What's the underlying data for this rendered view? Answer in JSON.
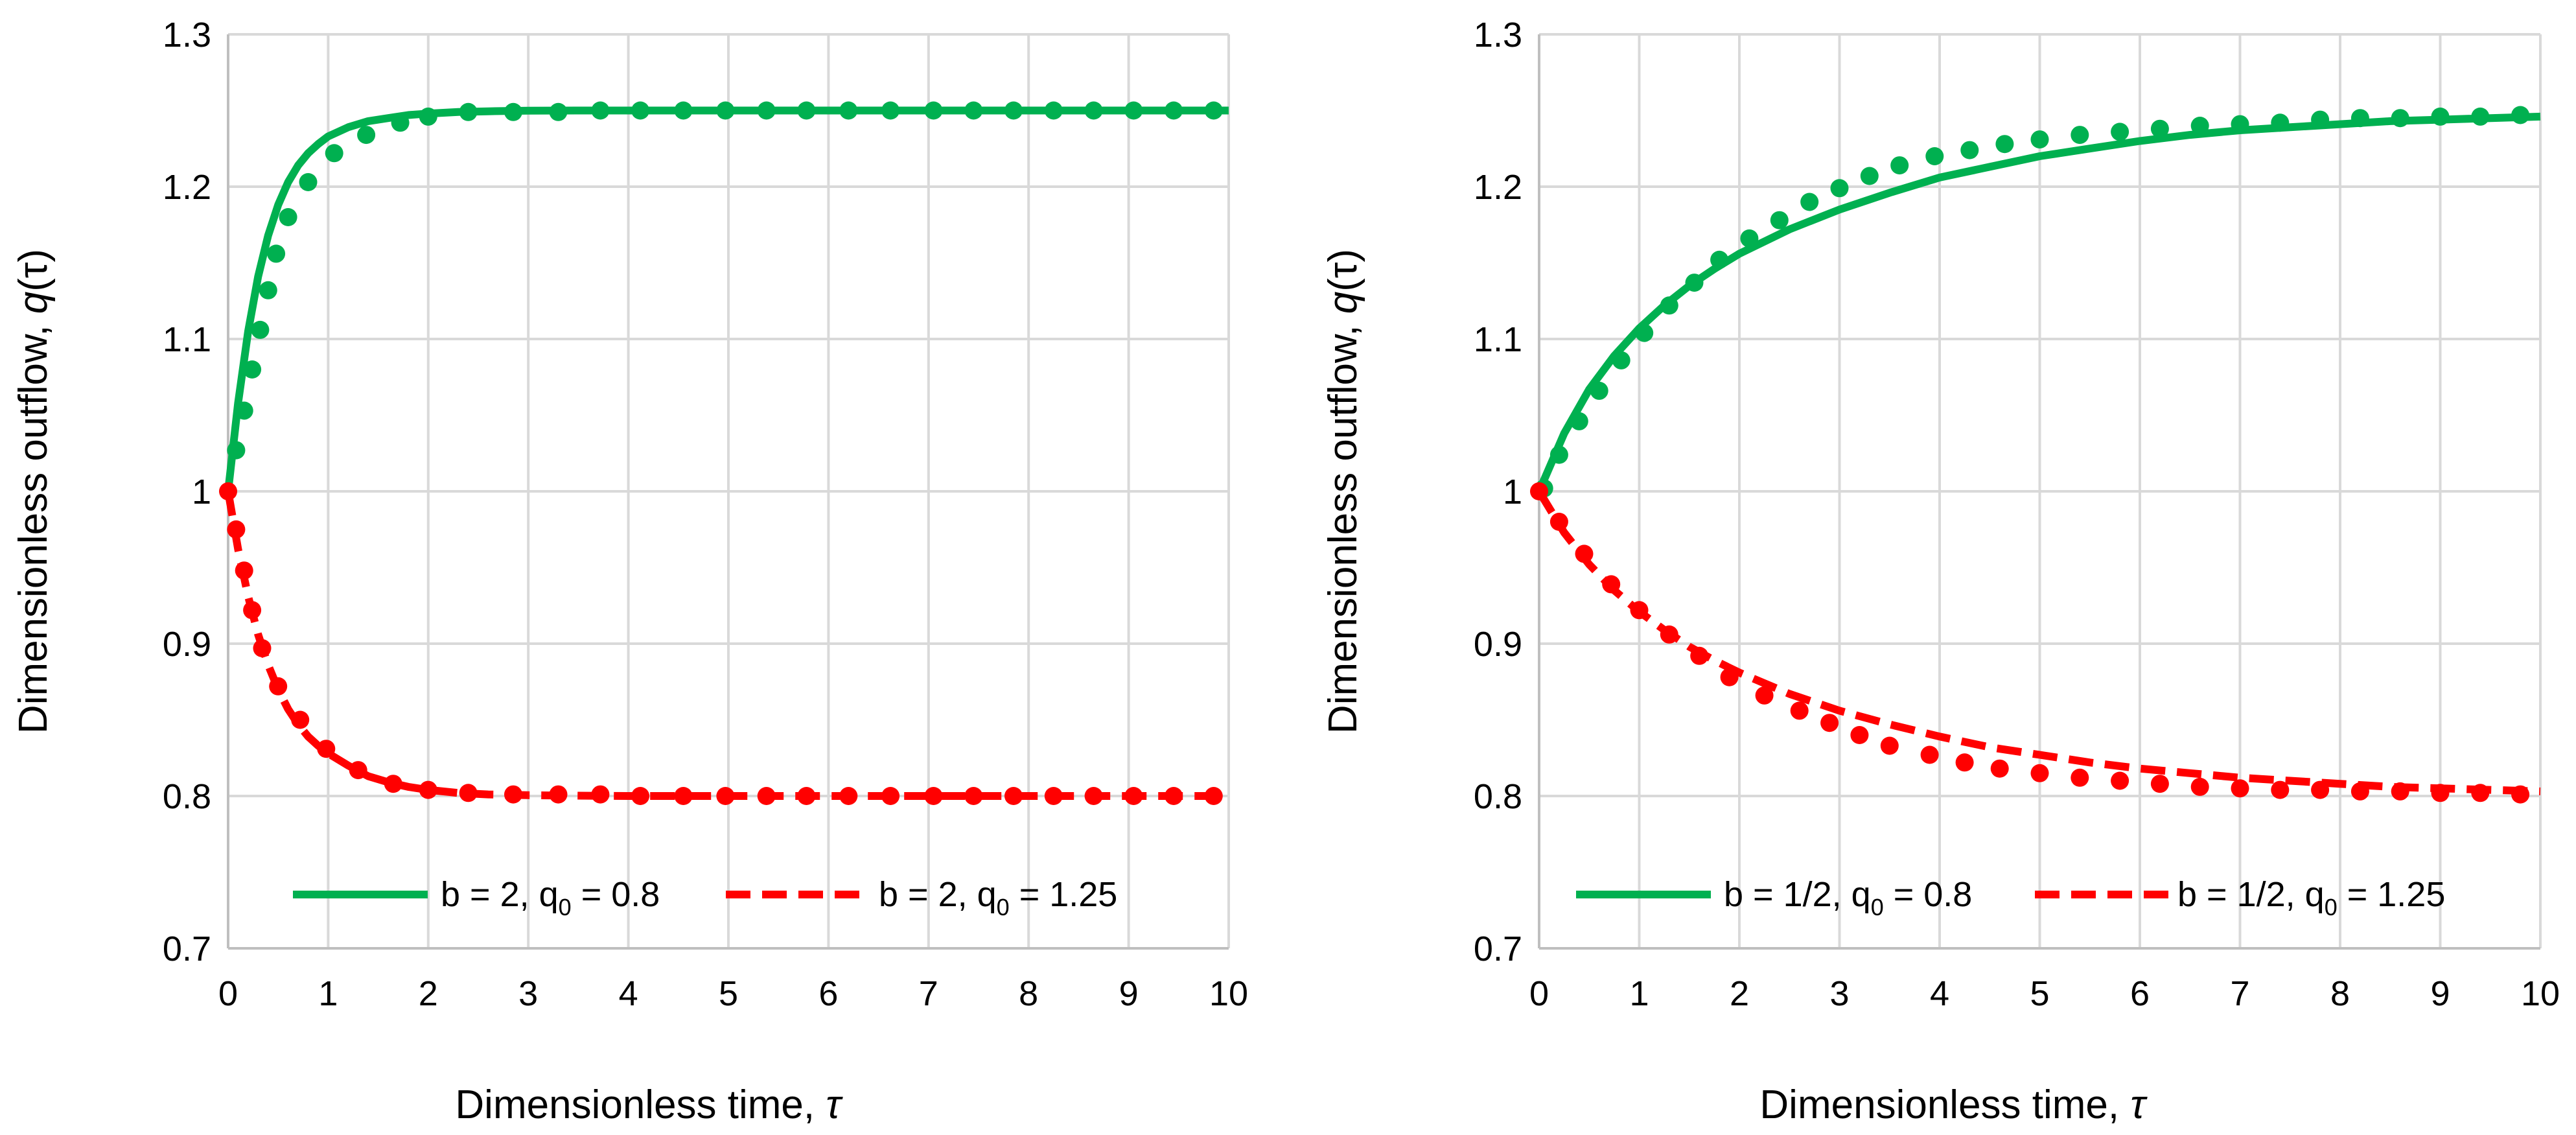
{
  "chart_data": [
    {
      "type": "line",
      "xlabel_text": "Dimensionless time, ",
      "xlabel_symbol": "τ",
      "ylabel_text": "Dimensionless outflow, ",
      "ylabel_symbol": "q",
      "ylabel_suffix": "(τ)",
      "xlim": [
        0,
        10
      ],
      "ylim": [
        0.7,
        1.3
      ],
      "xticks": [
        "0",
        "1",
        "2",
        "3",
        "4",
        "5",
        "6",
        "7",
        "8",
        "9",
        "10"
      ],
      "yticks": [
        "0.7",
        "0.8",
        "0.9",
        "1",
        "1.1",
        "1.2",
        "1.3"
      ],
      "grid": true,
      "legend_position": "bottom",
      "series": [
        {
          "name": "b = 2, q0 = 0.8",
          "legend_main": "b = 2, q",
          "legend_sub": "0",
          "legend_rest": " = 0.8",
          "color": "#00b050",
          "style": "solid",
          "x": [
            0,
            0.1,
            0.2,
            0.3,
            0.4,
            0.5,
            0.6,
            0.7,
            0.8,
            0.9,
            1.0,
            1.2,
            1.4,
            1.6,
            1.8,
            2.0,
            2.3,
            2.6,
            3.0,
            3.5,
            4.0,
            5.0,
            6.0,
            7.0,
            8.0,
            9.0,
            10.0
          ],
          "y": [
            1.0,
            1.058,
            1.105,
            1.141,
            1.168,
            1.188,
            1.203,
            1.214,
            1.222,
            1.228,
            1.233,
            1.239,
            1.243,
            1.245,
            1.247,
            1.248,
            1.249,
            1.2495,
            1.2499,
            1.25,
            1.25,
            1.25,
            1.25,
            1.25,
            1.25,
            1.25,
            1.25
          ],
          "markers_x": [
            0.08,
            0.16,
            0.24,
            0.32,
            0.4,
            0.48,
            0.6,
            0.8,
            1.06,
            1.38,
            1.72,
            2.0,
            2.4,
            2.85,
            3.3,
            3.72,
            4.12,
            4.55,
            4.97,
            5.38,
            5.78,
            6.2,
            6.62,
            7.05,
            7.45,
            7.85,
            8.25,
            8.65,
            9.05,
            9.45,
            9.85
          ],
          "markers_y": [
            1.027,
            1.053,
            1.08,
            1.106,
            1.132,
            1.156,
            1.18,
            1.203,
            1.222,
            1.234,
            1.242,
            1.246,
            1.249,
            1.249,
            1.249,
            1.25,
            1.25,
            1.25,
            1.25,
            1.25,
            1.25,
            1.25,
            1.25,
            1.25,
            1.25,
            1.25,
            1.25,
            1.25,
            1.25,
            1.25,
            1.25
          ]
        },
        {
          "name": "b = 2, q0 = 1.25",
          "legend_main": "b = 2, q",
          "legend_sub": "0",
          "legend_rest": " = 1.25",
          "color": "#ff0000",
          "style": "dashed",
          "x": [
            0,
            0.1,
            0.2,
            0.3,
            0.4,
            0.5,
            0.6,
            0.7,
            0.8,
            0.9,
            1.0,
            1.2,
            1.4,
            1.6,
            1.8,
            2.0,
            2.3,
            2.6,
            3.0,
            3.5,
            4.0,
            5.0,
            6.0,
            7.0,
            8.0,
            9.0,
            10.0
          ],
          "y": [
            1.0,
            0.962,
            0.931,
            0.906,
            0.886,
            0.87,
            0.857,
            0.847,
            0.839,
            0.833,
            0.828,
            0.82,
            0.813,
            0.809,
            0.806,
            0.804,
            0.802,
            0.801,
            0.8005,
            0.8002,
            0.8,
            0.8,
            0.8,
            0.8,
            0.8,
            0.8,
            0.8
          ],
          "markers_x": [
            0.0,
            0.08,
            0.16,
            0.24,
            0.34,
            0.5,
            0.72,
            0.98,
            1.3,
            1.65,
            2.0,
            2.4,
            2.85,
            3.3,
            3.72,
            4.12,
            4.55,
            4.97,
            5.38,
            5.78,
            6.2,
            6.62,
            7.05,
            7.45,
            7.85,
            8.25,
            8.65,
            9.05,
            9.45,
            9.85
          ],
          "markers_y": [
            1.0,
            0.975,
            0.948,
            0.922,
            0.897,
            0.872,
            0.85,
            0.831,
            0.817,
            0.808,
            0.804,
            0.802,
            0.801,
            0.801,
            0.801,
            0.8,
            0.8,
            0.8,
            0.8,
            0.8,
            0.8,
            0.8,
            0.8,
            0.8,
            0.8,
            0.8,
            0.8,
            0.8,
            0.8,
            0.8
          ]
        }
      ]
    },
    {
      "type": "line",
      "xlabel_text": "Dimensionless time, ",
      "xlabel_symbol": "τ",
      "ylabel_text": "Dimensionless outflow, ",
      "ylabel_symbol": "q",
      "ylabel_suffix": "(τ)",
      "xlim": [
        0,
        10
      ],
      "ylim": [
        0.7,
        1.3
      ],
      "xticks": [
        "0",
        "1",
        "2",
        "3",
        "4",
        "5",
        "6",
        "7",
        "8",
        "9",
        "10"
      ],
      "yticks": [
        "0.7",
        "0.8",
        "0.9",
        "1",
        "1.1",
        "1.2",
        "1.3"
      ],
      "grid": true,
      "legend_position": "bottom",
      "series": [
        {
          "name": "b = 1/2, q0 = 0.8",
          "legend_main": "b = 1/2, q",
          "legend_sub": "0",
          "legend_rest": " = 0.8",
          "color": "#00b050",
          "style": "solid",
          "x": [
            0,
            0.25,
            0.5,
            0.75,
            1.0,
            1.25,
            1.5,
            1.75,
            2.0,
            2.5,
            3.0,
            3.5,
            4.0,
            4.5,
            5.0,
            5.5,
            6.0,
            6.5,
            7.0,
            7.5,
            8.0,
            8.5,
            9.0,
            9.5,
            10.0
          ],
          "y": [
            1.0,
            1.038,
            1.067,
            1.089,
            1.107,
            1.122,
            1.135,
            1.146,
            1.156,
            1.172,
            1.185,
            1.196,
            1.206,
            1.213,
            1.22,
            1.225,
            1.23,
            1.234,
            1.237,
            1.239,
            1.241,
            1.243,
            1.244,
            1.245,
            1.246
          ],
          "markers_x": [
            0.05,
            0.2,
            0.4,
            0.6,
            0.82,
            1.05,
            1.3,
            1.55,
            1.8,
            2.1,
            2.4,
            2.7,
            3.0,
            3.3,
            3.6,
            3.95,
            4.3,
            4.65,
            5.0,
            5.4,
            5.8,
            6.2,
            6.6,
            7.0,
            7.4,
            7.8,
            8.2,
            8.6,
            9.0,
            9.4,
            9.8
          ],
          "markers_y": [
            1.002,
            1.024,
            1.046,
            1.066,
            1.086,
            1.104,
            1.122,
            1.137,
            1.152,
            1.166,
            1.178,
            1.19,
            1.199,
            1.207,
            1.214,
            1.22,
            1.224,
            1.228,
            1.231,
            1.234,
            1.236,
            1.238,
            1.24,
            1.241,
            1.242,
            1.244,
            1.245,
            1.245,
            1.246,
            1.246,
            1.247
          ]
        },
        {
          "name": "b = 1/2, q0 = 1.25",
          "legend_main": "b = 1/2, q",
          "legend_sub": "0",
          "legend_rest": " = 1.25",
          "color": "#ff0000",
          "style": "dashed",
          "x": [
            0,
            0.25,
            0.5,
            0.75,
            1.0,
            1.25,
            1.5,
            1.75,
            2.0,
            2.5,
            3.0,
            3.5,
            4.0,
            4.5,
            5.0,
            5.5,
            6.0,
            6.5,
            7.0,
            7.5,
            8.0,
            8.5,
            9.0,
            9.5,
            10.0
          ],
          "y": [
            1.0,
            0.973,
            0.952,
            0.935,
            0.921,
            0.909,
            0.898,
            0.889,
            0.881,
            0.867,
            0.856,
            0.847,
            0.839,
            0.832,
            0.827,
            0.822,
            0.818,
            0.815,
            0.812,
            0.81,
            0.808,
            0.806,
            0.805,
            0.804,
            0.803
          ],
          "markers_x": [
            0.0,
            0.2,
            0.45,
            0.72,
            1.0,
            1.3,
            1.6,
            1.9,
            2.25,
            2.6,
            2.9,
            3.2,
            3.5,
            3.9,
            4.25,
            4.6,
            5.0,
            5.4,
            5.8,
            6.2,
            6.6,
            7.0,
            7.4,
            7.8,
            8.2,
            8.6,
            9.0,
            9.4,
            9.8
          ],
          "markers_y": [
            1.0,
            0.98,
            0.959,
            0.939,
            0.922,
            0.906,
            0.892,
            0.878,
            0.866,
            0.856,
            0.848,
            0.84,
            0.833,
            0.827,
            0.822,
            0.818,
            0.815,
            0.812,
            0.81,
            0.808,
            0.806,
            0.805,
            0.804,
            0.804,
            0.803,
            0.803,
            0.802,
            0.802,
            0.801
          ]
        }
      ]
    }
  ]
}
